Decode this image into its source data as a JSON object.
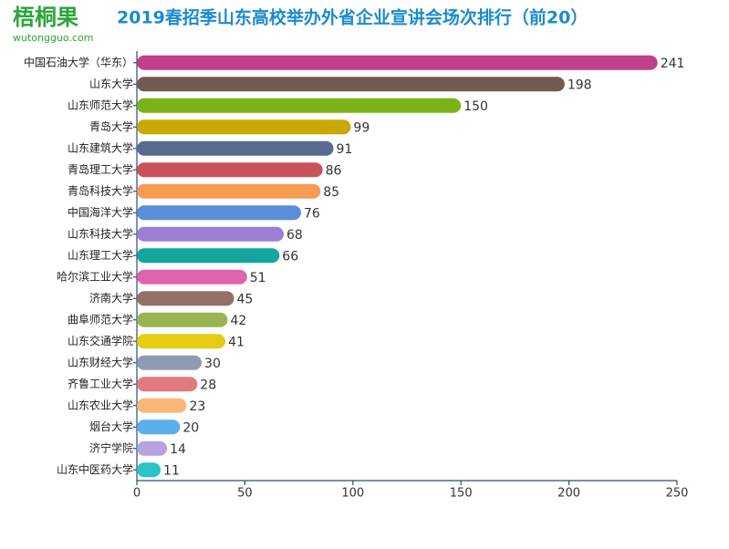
{
  "logo": {
    "name": "梧桐果",
    "url": "wutongguo.com"
  },
  "chart_data": {
    "type": "bar",
    "orientation": "horizontal",
    "title": "2019春招季山东高校举办外省企业宣讲会场次排行（前20）",
    "categories": [
      "中国石油大学（华东）",
      "山东大学",
      "山东师范大学",
      "青岛大学",
      "山东建筑大学",
      "青岛理工大学",
      "青岛科技大学",
      "中国海洋大学",
      "山东科技大学",
      "山东理工大学",
      "哈尔滨工业大学",
      "济南大学",
      "曲阜师范大学",
      "山东交通学院",
      "山东财经大学",
      "齐鲁工业大学",
      "山东农业大学",
      "烟台大学",
      "济宁学院",
      "山东中医药大学"
    ],
    "values": [
      241,
      198,
      150,
      99,
      91,
      86,
      85,
      76,
      68,
      66,
      51,
      45,
      42,
      41,
      30,
      28,
      23,
      20,
      14,
      11
    ],
    "colors": [
      "#c0408a",
      "#735a55",
      "#7ab317",
      "#c9a800",
      "#5a6a8f",
      "#c8535a",
      "#f59b52",
      "#5b8ed8",
      "#9b7fd4",
      "#13a59e",
      "#e063ad",
      "#957068",
      "#99b550",
      "#e3cc12",
      "#8e9bb3",
      "#e07a7e",
      "#fbb77a",
      "#5aaeea",
      "#b8a2e0",
      "#2bc4c4"
    ],
    "xlim": [
      0,
      250
    ],
    "xticks": [
      0,
      50,
      100,
      150,
      200,
      250
    ],
    "grid": false
  }
}
